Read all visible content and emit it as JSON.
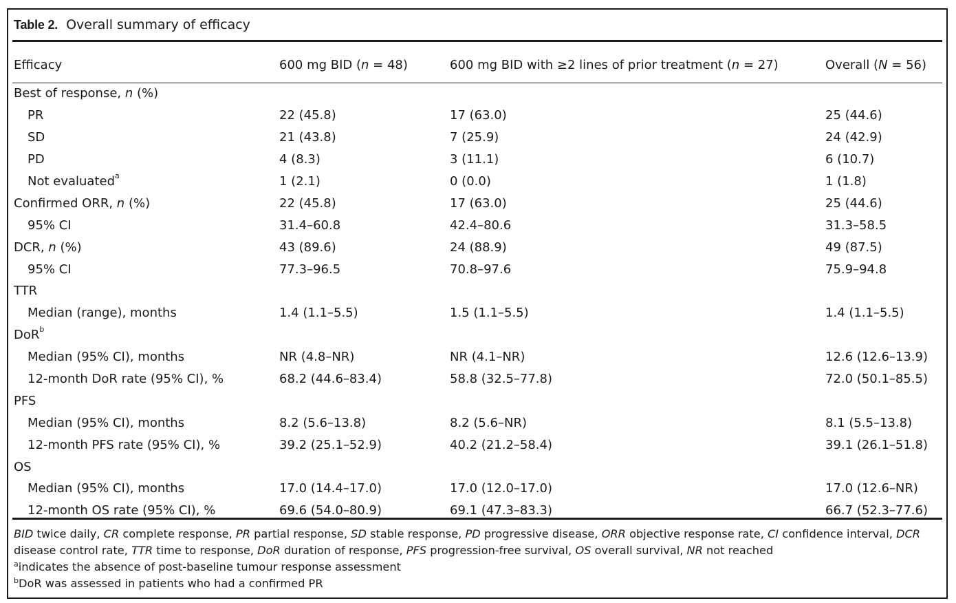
{
  "caption": {
    "label": "Table 2.",
    "title": "Overall summary of efficacy"
  },
  "header": {
    "col1": "Efficacy",
    "col2": "600 mg BID (n = 48)",
    "col3": "600 mg BID with ≥2 lines of prior treatment (n = 27)",
    "col4": "Overall (N = 56)"
  },
  "rows": [
    {
      "label": "Best of response, n (%)",
      "indent": false,
      "v1": "",
      "v2": "",
      "v3": ""
    },
    {
      "label": "PR",
      "indent": true,
      "v1": "22 (45.8)",
      "v2": "17 (63.0)",
      "v3": "25 (44.6)"
    },
    {
      "label": "SD",
      "indent": true,
      "v1": "21 (43.8)",
      "v2": "7 (25.9)",
      "v3": "24 (42.9)"
    },
    {
      "label": "PD",
      "indent": true,
      "v1": "4 (8.3)",
      "v2": "3 (11.1)",
      "v3": "6 (10.7)"
    },
    {
      "label": "Not evaluated",
      "sup": "a",
      "indent": true,
      "v1": "1 (2.1)",
      "v2": "0 (0.0)",
      "v3": "1 (1.8)"
    },
    {
      "label": "Confirmed ORR, n (%)",
      "indent": false,
      "v1": "22 (45.8)",
      "v2": "17 (63.0)",
      "v3": "25 (44.6)"
    },
    {
      "label": "95% CI",
      "indent": true,
      "v1": "31.4–60.8",
      "v2": "42.4–80.6",
      "v3": "31.3–58.5"
    },
    {
      "label": "DCR, n (%)",
      "indent": false,
      "v1": "43 (89.6)",
      "v2": "24 (88.9)",
      "v3": "49 (87.5)"
    },
    {
      "label": "95% CI",
      "indent": true,
      "v1": "77.3–96.5",
      "v2": "70.8–97.6",
      "v3": "75.9–94.8"
    },
    {
      "label": "TTR",
      "indent": false,
      "v1": "",
      "v2": "",
      "v3": ""
    },
    {
      "label": "Median (range), months",
      "indent": true,
      "v1": "1.4 (1.1–5.5)",
      "v2": "1.5 (1.1–5.5)",
      "v3": "1.4 (1.1–5.5)"
    },
    {
      "label": "DoR",
      "sup": "b",
      "indent": false,
      "v1": "",
      "v2": "",
      "v3": ""
    },
    {
      "label": "Median (95% CI), months",
      "indent": true,
      "v1": "NR (4.8–NR)",
      "v2": "NR (4.1–NR)",
      "v3": "12.6 (12.6–13.9)"
    },
    {
      "label": "12-month DoR rate (95% CI), %",
      "indent": true,
      "v1": "68.2 (44.6–83.4)",
      "v2": "58.8 (32.5–77.8)",
      "v3": "72.0 (50.1–85.5)"
    },
    {
      "label": "PFS",
      "indent": false,
      "v1": "",
      "v2": "",
      "v3": ""
    },
    {
      "label": "Median (95% CI), months",
      "indent": true,
      "v1": "8.2 (5.6–13.8)",
      "v2": "8.2 (5.6–NR)",
      "v3": "8.1 (5.5–13.8)"
    },
    {
      "label": "12-month PFS rate (95% CI), %",
      "indent": true,
      "v1": "39.2 (25.1–52.9)",
      "v2": "40.2 (21.2–58.4)",
      "v3": "39.1 (26.1–51.8)"
    },
    {
      "label": "OS",
      "indent": false,
      "v1": "",
      "v2": "",
      "v3": ""
    },
    {
      "label": "Median (95% CI), months",
      "indent": true,
      "v1": "17.0 (14.4–17.0)",
      "v2": "17.0 (12.0–17.0)",
      "v3": "17.0 (12.6–NR)"
    },
    {
      "label": "12-month OS rate (95% CI), %",
      "indent": true,
      "v1": "69.6 (54.0–80.9)",
      "v2": "69.1 (47.3–83.3)",
      "v3": "66.7 (52.3–77.6)"
    }
  ],
  "footnotes": {
    "abbreviations": [
      {
        "abbr": "BID",
        "def": "twice daily"
      },
      {
        "abbr": "CR",
        "def": "complete response"
      },
      {
        "abbr": "PR",
        "def": "partial response"
      },
      {
        "abbr": "SD",
        "def": "stable response"
      },
      {
        "abbr": "PD",
        "def": "progressive disease"
      },
      {
        "abbr": "ORR",
        "def": "objective response rate"
      },
      {
        "abbr": "CI",
        "def": "confidence interval"
      },
      {
        "abbr": "DCR",
        "def": "disease control rate"
      },
      {
        "abbr": "TTR",
        "def": "time to response"
      },
      {
        "abbr": "DoR",
        "def": "duration of response"
      },
      {
        "abbr": "PFS",
        "def": "progression-free survival"
      },
      {
        "abbr": "OS",
        "def": "overall survival"
      },
      {
        "abbr": "NR",
        "def": "not reached"
      }
    ],
    "note_a_mark": "a",
    "note_a": "indicates the absence of post-baseline tumour response assessment",
    "note_b_mark": "b",
    "note_b": "DoR was assessed in patients who had a confirmed PR"
  }
}
